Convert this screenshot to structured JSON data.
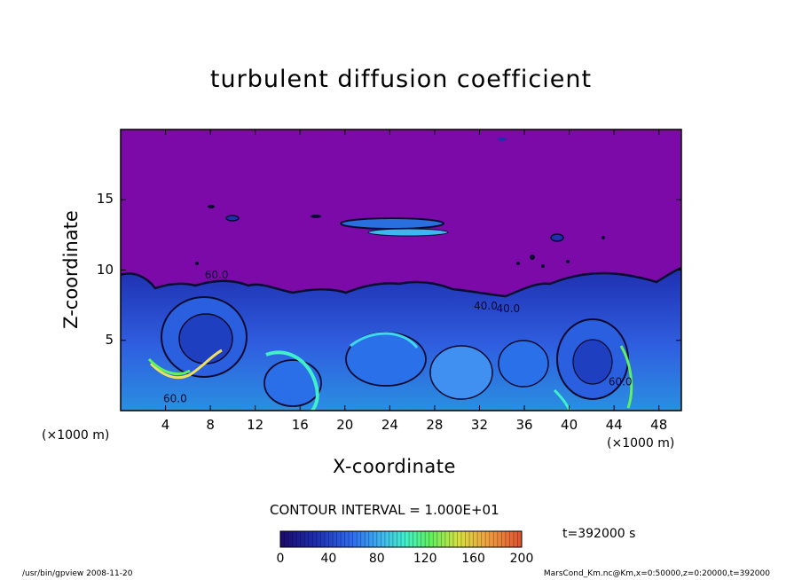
{
  "chart_data": {
    "type": "heatmap",
    "title": "turbulent diffusion coefficient",
    "xlabel": "X-coordinate",
    "ylabel": "Z-coordinate",
    "x_unit": "(×1000 m)",
    "y_unit": "(×1000 m)",
    "xlim": [
      0,
      50
    ],
    "ylim": [
      0,
      20
    ],
    "x_ticks": [
      "4",
      "8",
      "12",
      "16",
      "20",
      "24",
      "28",
      "32",
      "36",
      "40",
      "44",
      "48"
    ],
    "x_tick_values": [
      4,
      8,
      12,
      16,
      20,
      24,
      28,
      32,
      36,
      40,
      44,
      48
    ],
    "y_ticks": [
      "5",
      "10",
      "15"
    ],
    "y_tick_values": [
      5,
      10,
      15
    ],
    "contour_labels": [
      "60.0",
      "60.0",
      "40.0",
      "40.0",
      "60.0"
    ],
    "contour_label_points": [
      {
        "x": 7.5,
        "z": 9.4
      },
      {
        "x": 3.8,
        "z": 0.6
      },
      {
        "x": 31.5,
        "z": 7.2
      },
      {
        "x": 33.5,
        "z": 7.0
      },
      {
        "x": 43.5,
        "z": 1.8
      }
    ],
    "contour_interval": "CONTOUR INTERVAL = 1.000E+01",
    "time": "t=392000 s",
    "colorbar": {
      "range": [
        0,
        200
      ],
      "ticks": [
        "0",
        "40",
        "80",
        "120",
        "160",
        "200"
      ],
      "tick_values": [
        0,
        40,
        80,
        120,
        160,
        200
      ],
      "colors": [
        "#1a0a6e",
        "#1e2fb0",
        "#2f6df0",
        "#3fb6f0",
        "#40f0c8",
        "#60f060",
        "#d8e040",
        "#f0a040",
        "#e05030"
      ]
    },
    "upper_region_value": "0",
    "upper_region_color": "#7b0aa8",
    "turbulent_layer_top_km": 9.5
  },
  "footer": {
    "left": "/usr/bin/gpview   2008-11-20",
    "right": "MarsCond_Km.nc@Km,x=0:50000,z=0:20000,t=392000"
  }
}
